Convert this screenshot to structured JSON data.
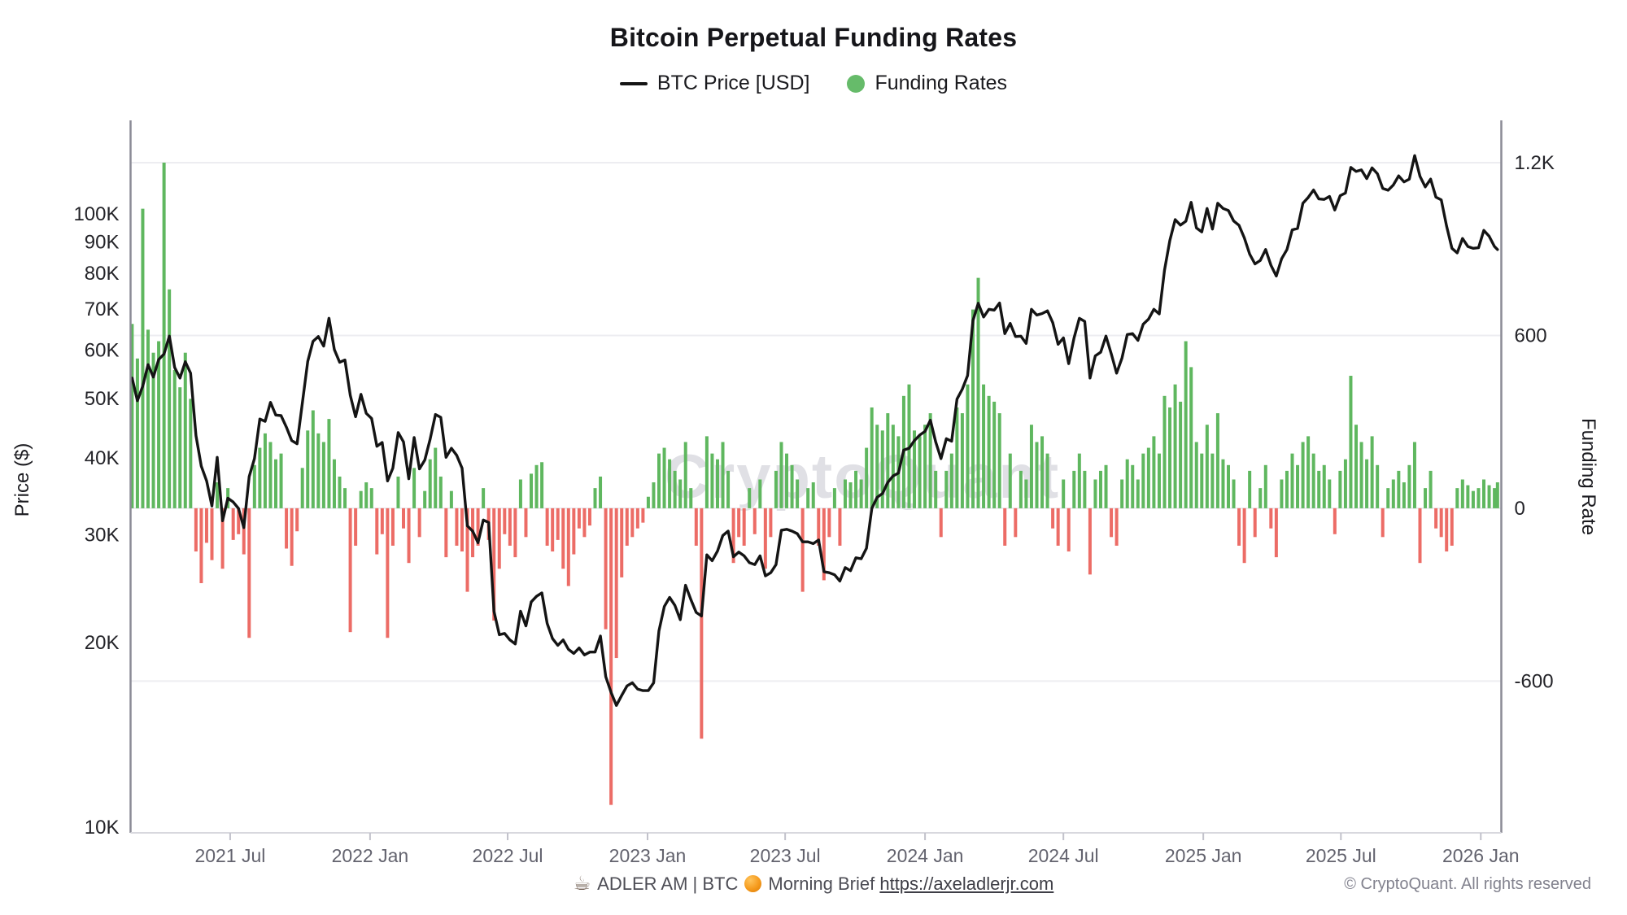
{
  "title": {
    "text": "Bitcoin Perpetual Funding Rates"
  },
  "legend": {
    "items": [
      {
        "label": "BTC Price [USD]",
        "swatch": "black-line"
      },
      {
        "label": "Funding Rates",
        "swatch": "green-dot",
        "color": "#66bb6a"
      }
    ]
  },
  "watermark": {
    "text": "CryptoQuant"
  },
  "footer": {
    "coffee_icon": "☕",
    "brand": "ADLER AM | BTC",
    "orange_icon": "orange-circle",
    "brief_label": "Morning Brief",
    "link": "https://axeladlerjr.com",
    "copyright": "© CryptoQuant. All rights reserved"
  },
  "chart_data": {
    "type": "mixed",
    "title": "Bitcoin Perpetual Funding Rates",
    "grid": "horizontal-only",
    "legend_position": "top-center",
    "series": [
      {
        "name": "BTC Price [USD]",
        "type": "line",
        "axis": "left",
        "color": "#141414"
      },
      {
        "name": "Funding Rates",
        "type": "bar",
        "axis": "right",
        "color_positive": "#5fb75f",
        "color_negative": "#ec6c66"
      }
    ],
    "left_axis": {
      "label": "Price ($)",
      "scale": "log",
      "unit": "USD",
      "ticks": [
        "10K",
        "20K",
        "30K",
        "40K",
        "50K",
        "60K",
        "70K",
        "80K",
        "90K",
        "100K"
      ],
      "tick_values": [
        10000,
        20000,
        30000,
        40000,
        50000,
        60000,
        70000,
        80000,
        90000,
        100000
      ],
      "domain": [
        9790,
        139100
      ]
    },
    "right_axis": {
      "label": "Funding Rate",
      "scale": "linear",
      "ticks": [
        "-600",
        "0",
        "600",
        "1.2K"
      ],
      "tick_values": [
        -600,
        0,
        600,
        1200
      ],
      "domain": [
        -1127,
        1327
      ]
    },
    "x_axis": {
      "ticks": [
        "2021 Jul",
        "2022 Jan",
        "2022 Jul",
        "2023 Jan",
        "2023 Jul",
        "2024 Jan",
        "2024 Jul",
        "2025 Jan",
        "2025 Jul",
        "2026 Jan"
      ],
      "tick_dates": [
        "2021-07-01",
        "2022-01-01",
        "2022-07-01",
        "2023-01-01",
        "2023-07-01",
        "2024-01-01",
        "2024-07-01",
        "2025-01-01",
        "2025-07-01",
        "2026-01-01"
      ],
      "domain": [
        "2021-02-20",
        "2026-01-28"
      ]
    },
    "point_format": [
      "date",
      "btc_price_kusd",
      "funding_rate"
    ],
    "points": [
      [
        "2021-02-22",
        54.0,
        640
      ],
      [
        "2021-03-01",
        49.6,
        520
      ],
      [
        "2021-03-08",
        52.4,
        1040
      ],
      [
        "2021-03-15",
        56.8,
        620
      ],
      [
        "2021-03-22",
        54.2,
        540
      ],
      [
        "2021-03-29",
        57.9,
        580
      ],
      [
        "2021-04-05",
        59.1,
        1200
      ],
      [
        "2021-04-12",
        63.2,
        760
      ],
      [
        "2021-04-19",
        56.2,
        480
      ],
      [
        "2021-04-26",
        54.0,
        420
      ],
      [
        "2021-05-03",
        57.4,
        540
      ],
      [
        "2021-05-10",
        55.0,
        380
      ],
      [
        "2021-05-17",
        43.5,
        -150
      ],
      [
        "2021-05-24",
        38.8,
        -260
      ],
      [
        "2021-05-31",
        36.7,
        -120
      ],
      [
        "2021-06-07",
        33.4,
        -180
      ],
      [
        "2021-06-14",
        40.1,
        90
      ],
      [
        "2021-06-21",
        31.6,
        -210
      ],
      [
        "2021-06-28",
        34.4,
        70
      ],
      [
        "2021-07-05",
        33.9,
        -110
      ],
      [
        "2021-07-12",
        33.1,
        -90
      ],
      [
        "2021-07-19",
        30.8,
        -160
      ],
      [
        "2021-07-26",
        37.3,
        -450
      ],
      [
        "2021-08-02",
        39.9,
        150
      ],
      [
        "2021-08-09",
        46.3,
        210
      ],
      [
        "2021-08-16",
        45.9,
        260
      ],
      [
        "2021-08-23",
        49.3,
        230
      ],
      [
        "2021-08-30",
        47.0,
        170
      ],
      [
        "2021-09-06",
        46.9,
        190
      ],
      [
        "2021-09-13",
        44.9,
        -140
      ],
      [
        "2021-09-20",
        42.7,
        -200
      ],
      [
        "2021-09-27",
        42.2,
        -80
      ],
      [
        "2021-10-04",
        49.2,
        140
      ],
      [
        "2021-10-11",
        57.5,
        270
      ],
      [
        "2021-10-18",
        62.0,
        340
      ],
      [
        "2021-10-25",
        63.1,
        260
      ],
      [
        "2021-11-01",
        60.9,
        230
      ],
      [
        "2021-11-08",
        67.6,
        310
      ],
      [
        "2021-11-15",
        60.1,
        170
      ],
      [
        "2021-11-22",
        57.3,
        110
      ],
      [
        "2021-11-29",
        57.8,
        70
      ],
      [
        "2021-12-06",
        50.6,
        -430
      ],
      [
        "2021-12-13",
        46.7,
        -130
      ],
      [
        "2021-12-20",
        50.8,
        60
      ],
      [
        "2021-12-27",
        47.3,
        90
      ],
      [
        "2022-01-03",
        46.4,
        70
      ],
      [
        "2022-01-10",
        41.8,
        -160
      ],
      [
        "2022-01-17",
        42.4,
        -90
      ],
      [
        "2022-01-24",
        36.7,
        -450
      ],
      [
        "2022-01-31",
        38.5,
        -130
      ],
      [
        "2022-02-07",
        44.0,
        110
      ],
      [
        "2022-02-14",
        42.5,
        -70
      ],
      [
        "2022-02-21",
        37.0,
        -190
      ],
      [
        "2022-02-28",
        43.2,
        140
      ],
      [
        "2022-03-07",
        38.4,
        -100
      ],
      [
        "2022-03-14",
        39.7,
        60
      ],
      [
        "2022-03-21",
        42.9,
        170
      ],
      [
        "2022-03-28",
        47.1,
        210
      ],
      [
        "2022-04-04",
        46.6,
        110
      ],
      [
        "2022-04-11",
        40.1,
        -170
      ],
      [
        "2022-04-18",
        41.5,
        60
      ],
      [
        "2022-04-25",
        40.4,
        -130
      ],
      [
        "2022-05-02",
        38.5,
        -150
      ],
      [
        "2022-05-09",
        31.0,
        -290
      ],
      [
        "2022-05-16",
        30.4,
        -170
      ],
      [
        "2022-05-23",
        29.1,
        -130
      ],
      [
        "2022-05-30",
        31.7,
        70
      ],
      [
        "2022-06-06",
        31.4,
        -110
      ],
      [
        "2022-06-13",
        22.5,
        -390
      ],
      [
        "2022-06-20",
        20.6,
        -210
      ],
      [
        "2022-06-27",
        20.7,
        -90
      ],
      [
        "2022-07-04",
        20.2,
        -130
      ],
      [
        "2022-07-11",
        19.9,
        -170
      ],
      [
        "2022-07-18",
        22.5,
        100
      ],
      [
        "2022-07-25",
        21.3,
        -100
      ],
      [
        "2022-08-01",
        23.3,
        120
      ],
      [
        "2022-08-08",
        23.8,
        150
      ],
      [
        "2022-08-15",
        24.1,
        160
      ],
      [
        "2022-08-22",
        21.5,
        -130
      ],
      [
        "2022-08-29",
        20.3,
        -150
      ],
      [
        "2022-09-05",
        19.8,
        -110
      ],
      [
        "2022-09-12",
        20.2,
        -210
      ],
      [
        "2022-09-19",
        19.5,
        -270
      ],
      [
        "2022-09-26",
        19.2,
        -160
      ],
      [
        "2022-10-03",
        19.6,
        -70
      ],
      [
        "2022-10-10",
        19.1,
        -100
      ],
      [
        "2022-10-17",
        19.3,
        -60
      ],
      [
        "2022-10-24",
        19.3,
        70
      ],
      [
        "2022-10-31",
        20.5,
        110
      ],
      [
        "2022-11-07",
        17.6,
        -420
      ],
      [
        "2022-11-14",
        16.6,
        -1030
      ],
      [
        "2022-11-21",
        15.8,
        -520
      ],
      [
        "2022-11-28",
        16.4,
        -240
      ],
      [
        "2022-12-05",
        17.0,
        -130
      ],
      [
        "2022-12-12",
        17.2,
        -100
      ],
      [
        "2022-12-19",
        16.8,
        -70
      ],
      [
        "2022-12-26",
        16.7,
        -50
      ],
      [
        "2023-01-02",
        16.7,
        40
      ],
      [
        "2023-01-09",
        17.2,
        90
      ],
      [
        "2023-01-16",
        20.9,
        190
      ],
      [
        "2023-01-23",
        22.9,
        210
      ],
      [
        "2023-01-30",
        23.7,
        170
      ],
      [
        "2023-02-06",
        23.0,
        130
      ],
      [
        "2023-02-13",
        21.8,
        100
      ],
      [
        "2023-02-20",
        24.8,
        230
      ],
      [
        "2023-02-27",
        23.5,
        70
      ],
      [
        "2023-03-06",
        22.4,
        -130
      ],
      [
        "2023-03-13",
        22.1,
        -800
      ],
      [
        "2023-03-20",
        27.8,
        250
      ],
      [
        "2023-03-27",
        27.2,
        190
      ],
      [
        "2023-04-03",
        28.2,
        170
      ],
      [
        "2023-04-10",
        29.9,
        230
      ],
      [
        "2023-04-17",
        30.4,
        130
      ],
      [
        "2023-04-24",
        27.6,
        -190
      ],
      [
        "2023-05-01",
        28.1,
        -100
      ],
      [
        "2023-05-08",
        27.7,
        -130
      ],
      [
        "2023-05-15",
        27.0,
        70
      ],
      [
        "2023-05-22",
        26.8,
        -90
      ],
      [
        "2023-05-29",
        27.7,
        100
      ],
      [
        "2023-06-05",
        25.7,
        -210
      ],
      [
        "2023-06-12",
        26.0,
        -100
      ],
      [
        "2023-06-19",
        26.8,
        130
      ],
      [
        "2023-06-26",
        30.5,
        230
      ],
      [
        "2023-07-03",
        30.6,
        190
      ],
      [
        "2023-07-10",
        30.4,
        150
      ],
      [
        "2023-07-17",
        30.1,
        100
      ],
      [
        "2023-07-24",
        29.2,
        -290
      ],
      [
        "2023-07-31",
        29.2,
        70
      ],
      [
        "2023-08-07",
        29.0,
        90
      ],
      [
        "2023-08-14",
        29.4,
        -130
      ],
      [
        "2023-08-21",
        26.1,
        -250
      ],
      [
        "2023-08-28",
        26.0,
        -100
      ],
      [
        "2023-09-04",
        25.8,
        70
      ],
      [
        "2023-09-11",
        25.2,
        -130
      ],
      [
        "2023-09-18",
        26.5,
        100
      ],
      [
        "2023-09-25",
        26.2,
        90
      ],
      [
        "2023-10-02",
        27.5,
        130
      ],
      [
        "2023-10-09",
        27.4,
        100
      ],
      [
        "2023-10-16",
        28.5,
        210
      ],
      [
        "2023-10-23",
        33.1,
        350
      ],
      [
        "2023-10-30",
        34.5,
        290
      ],
      [
        "2023-11-06",
        35.0,
        270
      ],
      [
        "2023-11-13",
        36.5,
        330
      ],
      [
        "2023-11-20",
        37.4,
        290
      ],
      [
        "2023-11-27",
        37.8,
        250
      ],
      [
        "2023-12-04",
        41.2,
        390
      ],
      [
        "2023-12-11",
        41.5,
        430
      ],
      [
        "2023-12-18",
        42.7,
        270
      ],
      [
        "2023-12-25",
        43.6,
        250
      ],
      [
        "2024-01-01",
        44.2,
        290
      ],
      [
        "2024-01-08",
        46.1,
        330
      ],
      [
        "2024-01-15",
        42.5,
        130
      ],
      [
        "2024-01-22",
        39.9,
        -100
      ],
      [
        "2024-01-29",
        43.0,
        130
      ],
      [
        "2024-02-05",
        42.6,
        190
      ],
      [
        "2024-02-12",
        49.9,
        350
      ],
      [
        "2024-02-19",
        51.8,
        330
      ],
      [
        "2024-02-26",
        54.5,
        430
      ],
      [
        "2024-03-04",
        67.0,
        690
      ],
      [
        "2024-03-11",
        71.5,
        800
      ],
      [
        "2024-03-18",
        67.9,
        430
      ],
      [
        "2024-03-25",
        69.9,
        390
      ],
      [
        "2024-04-01",
        69.7,
        370
      ],
      [
        "2024-04-08",
        71.6,
        330
      ],
      [
        "2024-04-15",
        63.8,
        -130
      ],
      [
        "2024-04-22",
        66.3,
        190
      ],
      [
        "2024-04-29",
        63.1,
        -100
      ],
      [
        "2024-05-06",
        63.2,
        130
      ],
      [
        "2024-05-13",
        61.5,
        100
      ],
      [
        "2024-05-20",
        69.9,
        290
      ],
      [
        "2024-05-27",
        68.4,
        230
      ],
      [
        "2024-06-03",
        68.8,
        250
      ],
      [
        "2024-06-10",
        69.5,
        190
      ],
      [
        "2024-06-17",
        66.5,
        -70
      ],
      [
        "2024-06-24",
        61.3,
        -130
      ],
      [
        "2024-07-01",
        62.8,
        100
      ],
      [
        "2024-07-08",
        57.0,
        -150
      ],
      [
        "2024-07-15",
        62.8,
        130
      ],
      [
        "2024-07-22",
        67.6,
        190
      ],
      [
        "2024-07-29",
        66.8,
        130
      ],
      [
        "2024-08-05",
        54.0,
        -230
      ],
      [
        "2024-08-12",
        58.7,
        100
      ],
      [
        "2024-08-19",
        59.5,
        130
      ],
      [
        "2024-08-26",
        63.2,
        150
      ],
      [
        "2024-09-02",
        59.1,
        -100
      ],
      [
        "2024-09-09",
        55.0,
        -130
      ],
      [
        "2024-09-16",
        58.2,
        100
      ],
      [
        "2024-09-23",
        63.6,
        170
      ],
      [
        "2024-09-30",
        63.8,
        150
      ],
      [
        "2024-10-07",
        62.2,
        100
      ],
      [
        "2024-10-14",
        66.1,
        190
      ],
      [
        "2024-10-21",
        67.4,
        210
      ],
      [
        "2024-10-28",
        69.9,
        250
      ],
      [
        "2024-11-04",
        68.7,
        190
      ],
      [
        "2024-11-11",
        81.0,
        390
      ],
      [
        "2024-11-18",
        90.5,
        350
      ],
      [
        "2024-11-25",
        97.9,
        430
      ],
      [
        "2024-12-02",
        95.9,
        370
      ],
      [
        "2024-12-09",
        97.3,
        580
      ],
      [
        "2024-12-16",
        104.5,
        490
      ],
      [
        "2024-12-23",
        94.9,
        230
      ],
      [
        "2024-12-30",
        93.5,
        190
      ],
      [
        "2025-01-06",
        102.1,
        290
      ],
      [
        "2025-01-13",
        94.5,
        190
      ],
      [
        "2025-01-20",
        104.1,
        330
      ],
      [
        "2025-01-27",
        102.1,
        170
      ],
      [
        "2025-02-03",
        101.3,
        150
      ],
      [
        "2025-02-10",
        97.4,
        100
      ],
      [
        "2025-02-17",
        95.8,
        -130
      ],
      [
        "2025-02-24",
        91.4,
        -190
      ],
      [
        "2025-03-03",
        86.0,
        130
      ],
      [
        "2025-03-10",
        82.9,
        -100
      ],
      [
        "2025-03-17",
        84.0,
        70
      ],
      [
        "2025-03-24",
        87.5,
        150
      ],
      [
        "2025-03-31",
        82.5,
        -70
      ],
      [
        "2025-04-07",
        79.2,
        -170
      ],
      [
        "2025-04-14",
        84.5,
        100
      ],
      [
        "2025-04-21",
        87.5,
        130
      ],
      [
        "2025-04-28",
        94.2,
        190
      ],
      [
        "2025-05-05",
        94.7,
        150
      ],
      [
        "2025-05-12",
        104.1,
        230
      ],
      [
        "2025-05-19",
        106.4,
        250
      ],
      [
        "2025-05-26",
        109.4,
        190
      ],
      [
        "2025-06-02",
        105.8,
        130
      ],
      [
        "2025-06-09",
        105.6,
        150
      ],
      [
        "2025-06-16",
        106.8,
        100
      ],
      [
        "2025-06-23",
        101.5,
        -90
      ],
      [
        "2025-06-30",
        107.1,
        130
      ],
      [
        "2025-07-07",
        108.2,
        170
      ],
      [
        "2025-07-14",
        119.1,
        460
      ],
      [
        "2025-07-21",
        117.3,
        290
      ],
      [
        "2025-07-28",
        118.0,
        230
      ],
      [
        "2025-08-04",
        114.2,
        170
      ],
      [
        "2025-08-11",
        118.9,
        250
      ],
      [
        "2025-08-18",
        116.3,
        150
      ],
      [
        "2025-08-25",
        110.1,
        -100
      ],
      [
        "2025-09-01",
        109.3,
        70
      ],
      [
        "2025-09-08",
        111.5,
        100
      ],
      [
        "2025-09-15",
        115.4,
        130
      ],
      [
        "2025-09-22",
        112.8,
        90
      ],
      [
        "2025-09-29",
        114.0,
        150
      ],
      [
        "2025-10-06",
        124.5,
        230
      ],
      [
        "2025-10-13",
        115.2,
        -190
      ],
      [
        "2025-10-20",
        110.7,
        70
      ],
      [
        "2025-10-27",
        114.0,
        130
      ],
      [
        "2025-11-03",
        106.5,
        -70
      ],
      [
        "2025-11-10",
        105.4,
        -100
      ],
      [
        "2025-11-17",
        95.6,
        -150
      ],
      [
        "2025-11-24",
        87.9,
        -130
      ],
      [
        "2025-12-01",
        86.4,
        70
      ],
      [
        "2025-12-08",
        91.2,
        100
      ],
      [
        "2025-12-15",
        88.5,
        80
      ],
      [
        "2025-12-22",
        87.9,
        60
      ],
      [
        "2025-12-29",
        88.1,
        70
      ],
      [
        "2026-01-05",
        94.0,
        100
      ],
      [
        "2026-01-12",
        92.0,
        80
      ],
      [
        "2026-01-19",
        88.5,
        70
      ],
      [
        "2026-01-23",
        87.5,
        90
      ]
    ]
  }
}
